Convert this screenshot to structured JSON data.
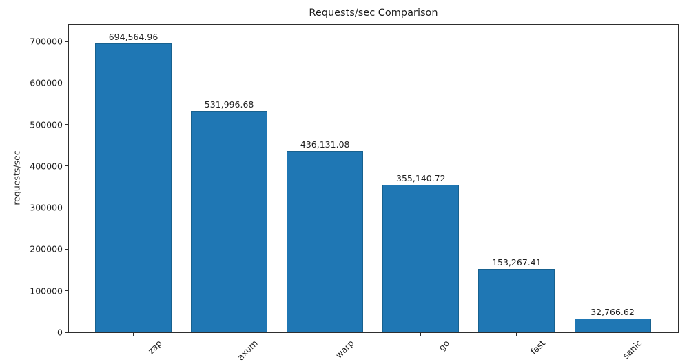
{
  "chart_data": {
    "type": "bar",
    "title": "Requests/sec Comparison",
    "xlabel": "",
    "ylabel": "requests/sec",
    "categories": [
      "zap",
      "axum",
      "warp",
      "go",
      "fast",
      "sanic"
    ],
    "values": [
      694564.96,
      531996.68,
      436131.08,
      355140.72,
      153267.41,
      32766.62
    ],
    "value_labels": [
      "694,564.96",
      "531,996.68",
      "436,131.08",
      "355,140.72",
      "153,267.41",
      "32,766.62"
    ],
    "yticks": [
      0,
      100000,
      200000,
      300000,
      400000,
      500000,
      600000,
      700000
    ],
    "ytick_labels": [
      "0",
      "100000",
      "200000",
      "300000",
      "400000",
      "500000",
      "600000",
      "700000"
    ],
    "ylim": [
      0,
      740000
    ],
    "x_tick_rotation": 45,
    "grid": false,
    "legend_position": null,
    "bar_color": "#1f77b4",
    "bar_edge_color": "#17618f",
    "axis_color": "#2e2e2e",
    "text_color": "#1f1f1f"
  }
}
